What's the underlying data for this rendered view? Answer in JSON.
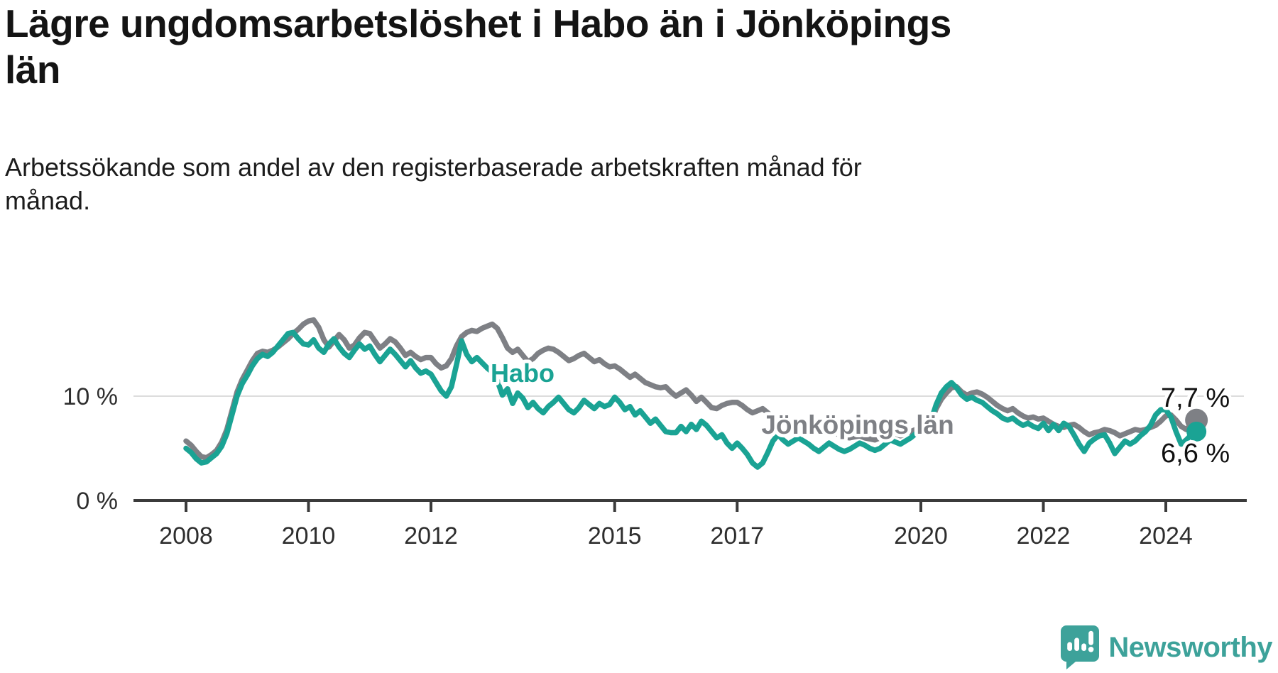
{
  "header": {
    "title_line1": "Lägre ungdomsarbetslöshet i Habo än i Jönköpings",
    "title_line2": "län",
    "subtitle_line1": "Arbetssökande som andel av den registerbaserade arbetskraften månad för",
    "subtitle_line2": "månad."
  },
  "footer": {
    "brand": "Newsworthy"
  },
  "colors": {
    "habo": "#1aa394",
    "county": "#7e8085",
    "grid": "#dcdcdc",
    "axis": "#3b3b3b",
    "tick_text": "#2e2e2e",
    "value_label": "#111111",
    "brand": "#3da29a",
    "background": "#ffffff"
  },
  "chart_data": {
    "type": "line",
    "title": "Lägre ungdomsarbetslöshet i Habo än i Jönköpings län",
    "subtitle": "Arbetssökande som andel av den registerbaserade arbetskraften månad för månad.",
    "unit": "%",
    "frequency": "monthly",
    "x_start_year": 2008,
    "x_end_label": "mitten av 2024",
    "x_ticks": [
      2008,
      2010,
      2012,
      2015,
      2017,
      2020,
      2022,
      2024
    ],
    "y_ticks": [
      {
        "value": 0,
        "label": "0 %"
      },
      {
        "value": 10,
        "label": "10 %"
      }
    ],
    "ylim": [
      0,
      18.5
    ],
    "grid": "single horizontal gridline at 10 %",
    "legend_position": "inline labels on lines",
    "series": [
      {
        "name": "Jönköpings län",
        "color": "#7e8085",
        "end_label": "7,7 %",
        "end_value": 7.7,
        "values": [
          5.7,
          5.3,
          4.7,
          4.2,
          4.1,
          4.4,
          4.8,
          5.6,
          6.8,
          8.6,
          10.4,
          11.6,
          12.5,
          13.4,
          14.1,
          14.3,
          14.2,
          14.4,
          14.7,
          15.1,
          15.5,
          16.0,
          16.4,
          16.9,
          17.2,
          17.3,
          16.6,
          15.4,
          14.7,
          15.3,
          15.9,
          15.4,
          14.6,
          14.9,
          15.6,
          16.1,
          16.0,
          15.3,
          14.6,
          15.0,
          15.5,
          15.2,
          14.6,
          13.9,
          14.2,
          13.8,
          13.5,
          13.7,
          13.7,
          13.1,
          12.7,
          12.9,
          13.6,
          14.8,
          15.7,
          16.1,
          16.3,
          16.2,
          16.5,
          16.7,
          16.9,
          16.5,
          15.6,
          14.6,
          14.2,
          14.5,
          13.9,
          13.3,
          13.6,
          14.1,
          14.4,
          14.6,
          14.5,
          14.2,
          13.8,
          13.4,
          13.6,
          13.9,
          14.1,
          13.7,
          13.3,
          13.5,
          13.1,
          12.8,
          12.9,
          12.6,
          12.2,
          11.8,
          12.1,
          11.7,
          11.3,
          11.1,
          10.9,
          10.8,
          10.9,
          10.4,
          10.0,
          10.3,
          10.6,
          10.1,
          9.5,
          9.9,
          9.4,
          8.9,
          8.8,
          9.1,
          9.3,
          9.4,
          9.4,
          9.1,
          8.7,
          8.4,
          8.6,
          8.8,
          8.4,
          8.0,
          7.7,
          7.5,
          7.3,
          7.2,
          7.1,
          6.9,
          6.7,
          6.5,
          6.4,
          6.6,
          6.8,
          6.5,
          6.3,
          6.1,
          6.0,
          6.1,
          6.2,
          6.0,
          5.9,
          5.8,
          6.0,
          6.2,
          6.5,
          6.4,
          6.2,
          6.4,
          6.6,
          6.8,
          7.0,
          7.1,
          7.6,
          8.8,
          9.7,
          10.3,
          10.8,
          10.9,
          10.4,
          10.1,
          10.3,
          10.4,
          10.2,
          9.9,
          9.5,
          9.1,
          8.8,
          8.6,
          8.8,
          8.4,
          8.1,
          7.9,
          8.0,
          7.8,
          7.9,
          7.6,
          7.3,
          7.1,
          7.0,
          7.2,
          7.3,
          7.0,
          6.6,
          6.3,
          6.5,
          6.6,
          6.8,
          6.7,
          6.5,
          6.2,
          6.4,
          6.6,
          6.8,
          6.7,
          6.8,
          7.0,
          7.2,
          7.6,
          8.1,
          8.2,
          7.7,
          7.1,
          6.8,
          7.3,
          7.7
        ]
      },
      {
        "name": "Habo",
        "color": "#1aa394",
        "end_label": "6,6 %",
        "end_value": 6.6,
        "values": [
          5.0,
          4.6,
          4.0,
          3.6,
          3.7,
          4.1,
          4.5,
          5.2,
          6.4,
          8.2,
          10.0,
          11.2,
          12.0,
          12.9,
          13.6,
          14.0,
          13.8,
          14.2,
          14.8,
          15.4,
          16.0,
          16.1,
          15.5,
          15.0,
          14.9,
          15.4,
          14.6,
          14.2,
          15.0,
          15.5,
          14.7,
          14.1,
          13.7,
          14.4,
          15.0,
          14.5,
          14.8,
          14.0,
          13.3,
          13.9,
          14.5,
          14.0,
          13.4,
          12.8,
          13.4,
          12.7,
          12.2,
          12.4,
          12.1,
          11.3,
          10.5,
          10.0,
          10.9,
          13.0,
          15.3,
          14.0,
          13.3,
          13.7,
          13.2,
          12.7,
          12.3,
          11.5,
          10.1,
          10.7,
          9.3,
          10.3,
          9.8,
          8.9,
          9.4,
          8.8,
          8.4,
          9.0,
          9.4,
          9.9,
          9.3,
          8.7,
          8.4,
          8.9,
          9.6,
          9.2,
          8.8,
          9.3,
          9.0,
          9.2,
          9.9,
          9.4,
          8.7,
          9.0,
          8.2,
          8.6,
          8.0,
          7.4,
          7.8,
          7.2,
          6.6,
          6.5,
          6.5,
          7.1,
          6.6,
          7.3,
          6.8,
          7.6,
          7.2,
          6.6,
          6.0,
          6.3,
          5.5,
          5.0,
          5.5,
          5.0,
          4.4,
          3.6,
          3.2,
          3.6,
          4.6,
          5.7,
          6.3,
          5.8,
          5.4,
          5.7,
          6.0,
          5.7,
          5.4,
          5.0,
          4.7,
          5.1,
          5.5,
          5.2,
          4.9,
          4.7,
          4.9,
          5.2,
          5.5,
          5.3,
          5.0,
          4.8,
          5.0,
          5.4,
          5.8,
          5.6,
          5.4,
          5.7,
          6.0,
          6.4,
          6.8,
          7.0,
          7.7,
          9.2,
          10.3,
          10.9,
          11.3,
          10.8,
          10.1,
          9.7,
          9.9,
          9.6,
          9.4,
          9.0,
          8.6,
          8.3,
          7.9,
          7.7,
          7.9,
          7.5,
          7.2,
          7.4,
          7.1,
          6.9,
          7.4,
          6.7,
          7.3,
          6.7,
          7.4,
          7.1,
          6.3,
          5.4,
          4.7,
          5.5,
          5.9,
          6.2,
          6.3,
          5.5,
          4.5,
          5.1,
          5.7,
          5.4,
          5.7,
          6.2,
          6.6,
          7.2,
          8.2,
          8.7,
          8.7,
          8.0,
          6.6,
          5.4,
          5.8,
          6.3,
          6.6
        ]
      }
    ]
  }
}
